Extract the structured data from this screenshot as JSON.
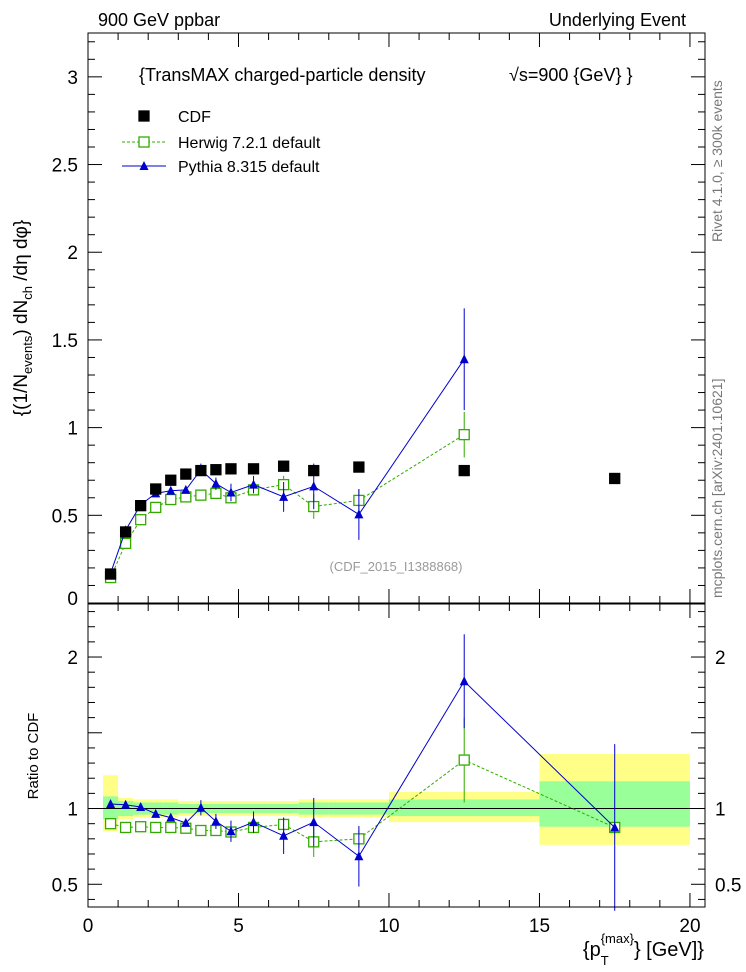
{
  "header": {
    "left": "900 GeV ppbar",
    "right": "Underlying Event"
  },
  "side_labels": {
    "rivet": "Rivet 4.1.0, ≥ 300k events",
    "mcplots": "mcplots.cern.ch [arXiv:2401.10621]"
  },
  "main_title": "{TransMAX charged-particle density",
  "sqrt_s": "√s=900 {GeV} }",
  "analysis_id": "(CDF_2015_I1388868)",
  "colors": {
    "cdf": "#000000",
    "herwig": "#33aa00",
    "pythia": "#0000cc",
    "band_inner": "#99ff99",
    "band_outer": "#ffff88",
    "analysis_id": "#9a9a9a",
    "side": "#777777"
  },
  "chart_data": [
    {
      "type": "scatter",
      "name": "main",
      "xlabel": "{p_T^{max}} [GeV]}",
      "ylabel": "{(1/N_events) dN_ch /dη dφ}",
      "xlim": [
        0,
        20.5
      ],
      "ylim": [
        0,
        3.25
      ],
      "yticks": [
        {
          "v": 0.5,
          "label": "0.5"
        },
        {
          "v": 1,
          "label": "1"
        },
        {
          "v": 1.5,
          "label": "1.5"
        },
        {
          "v": 2,
          "label": "2"
        },
        {
          "v": 2.5,
          "label": "2.5"
        },
        {
          "v": 3,
          "label": "3"
        }
      ],
      "ytick_zero": "0",
      "legend": [
        {
          "key": "cdf",
          "label": "CDF"
        },
        {
          "key": "herwig",
          "label": "Herwig 7.2.1 default"
        },
        {
          "key": "pythia",
          "label": "Pythia 8.315 default"
        }
      ],
      "series": [
        {
          "key": "cdf",
          "name": "CDF",
          "x": [
            0.75,
            1.25,
            1.75,
            2.25,
            2.75,
            3.25,
            3.75,
            4.25,
            4.75,
            5.5,
            6.5,
            7.5,
            9.0,
            12.5,
            17.5
          ],
          "y": [
            0.165,
            0.405,
            0.555,
            0.65,
            0.7,
            0.735,
            0.755,
            0.76,
            0.765,
            0.765,
            0.78,
            0.755,
            0.775,
            0.755,
            0.71
          ]
        },
        {
          "key": "herwig",
          "name": "Herwig 7.2.1 default",
          "x": [
            0.75,
            1.25,
            1.75,
            2.25,
            2.75,
            3.25,
            3.75,
            4.25,
            4.75,
            5.5,
            6.5,
            7.5,
            9.0,
            12.5
          ],
          "y": [
            0.145,
            0.34,
            0.475,
            0.545,
            0.59,
            0.605,
            0.615,
            0.625,
            0.6,
            0.645,
            0.675,
            0.55,
            0.585,
            0.96
          ],
          "err": [
            0.01,
            0.01,
            0.01,
            0.015,
            0.015,
            0.02,
            0.02,
            0.02,
            0.025,
            0.03,
            0.05,
            0.07,
            0.06,
            0.13
          ]
        },
        {
          "key": "pythia",
          "name": "Pythia 8.315 default",
          "x": [
            0.75,
            1.25,
            1.75,
            2.25,
            2.75,
            3.25,
            3.75,
            4.25,
            4.75,
            5.5,
            6.5,
            7.5,
            9.0,
            12.5
          ],
          "y": [
            0.17,
            0.415,
            0.56,
            0.625,
            0.64,
            0.645,
            0.76,
            0.68,
            0.63,
            0.675,
            0.605,
            0.665,
            0.505,
            1.39
          ],
          "err": [
            0.01,
            0.01,
            0.01,
            0.015,
            0.015,
            0.02,
            0.035,
            0.035,
            0.05,
            0.05,
            0.085,
            0.13,
            0.145,
            0.29
          ]
        }
      ]
    },
    {
      "type": "scatter",
      "name": "ratio",
      "ylabel": "Ratio to CDF",
      "xlabel": "{p_T^{max}} [GeV]}",
      "xlim": [
        0,
        20.5
      ],
      "ylim": [
        0.35,
        2.35
      ],
      "yticks": [
        {
          "v": 0.5,
          "label": "0.5"
        },
        {
          "v": 1,
          "label": "1"
        },
        {
          "v": 2,
          "label": "2"
        }
      ],
      "xticks": [
        {
          "v": 0,
          "label": "0"
        },
        {
          "v": 5,
          "label": "5"
        },
        {
          "v": 10,
          "label": "10"
        },
        {
          "v": 15,
          "label": "15"
        },
        {
          "v": 20,
          "label": "20"
        }
      ],
      "bands": [
        {
          "x0": 0.5,
          "x1": 1.0,
          "in": [
            0.93,
            1.08
          ],
          "out": [
            0.85,
            1.22
          ]
        },
        {
          "x0": 1.0,
          "x1": 1.5,
          "in": [
            0.95,
            1.05
          ],
          "out": [
            0.93,
            1.07
          ]
        },
        {
          "x0": 1.5,
          "x1": 2.0,
          "in": [
            0.96,
            1.04
          ],
          "out": [
            0.94,
            1.06
          ]
        },
        {
          "x0": 2.0,
          "x1": 2.5,
          "in": [
            0.96,
            1.04
          ],
          "out": [
            0.94,
            1.06
          ]
        },
        {
          "x0": 2.5,
          "x1": 3.0,
          "in": [
            0.96,
            1.04
          ],
          "out": [
            0.94,
            1.06
          ]
        },
        {
          "x0": 3.0,
          "x1": 3.5,
          "in": [
            0.97,
            1.03
          ],
          "out": [
            0.95,
            1.05
          ]
        },
        {
          "x0": 3.5,
          "x1": 4.0,
          "in": [
            0.97,
            1.03
          ],
          "out": [
            0.95,
            1.05
          ]
        },
        {
          "x0": 4.0,
          "x1": 4.5,
          "in": [
            0.97,
            1.03
          ],
          "out": [
            0.95,
            1.05
          ]
        },
        {
          "x0": 4.5,
          "x1": 5.0,
          "in": [
            0.97,
            1.03
          ],
          "out": [
            0.95,
            1.05
          ]
        },
        {
          "x0": 5.0,
          "x1": 6.0,
          "in": [
            0.97,
            1.03
          ],
          "out": [
            0.95,
            1.05
          ]
        },
        {
          "x0": 6.0,
          "x1": 7.0,
          "in": [
            0.97,
            1.03
          ],
          "out": [
            0.95,
            1.05
          ]
        },
        {
          "x0": 7.0,
          "x1": 8.0,
          "in": [
            0.96,
            1.04
          ],
          "out": [
            0.94,
            1.06
          ]
        },
        {
          "x0": 8.0,
          "x1": 10.0,
          "in": [
            0.96,
            1.04
          ],
          "out": [
            0.94,
            1.06
          ]
        },
        {
          "x0": 10.0,
          "x1": 15.0,
          "in": [
            0.95,
            1.06
          ],
          "out": [
            0.91,
            1.11
          ]
        },
        {
          "x0": 15.0,
          "x1": 20.0,
          "in": [
            0.88,
            1.18
          ],
          "out": [
            0.76,
            1.36
          ]
        }
      ],
      "series": [
        {
          "key": "herwig",
          "name": "Herwig 7.2.1 default",
          "x": [
            0.75,
            1.25,
            1.75,
            2.25,
            2.75,
            3.25,
            3.75,
            4.25,
            4.75,
            5.5,
            6.5,
            7.5,
            9.0,
            12.5,
            17.5
          ],
          "y": [
            0.9,
            0.875,
            0.88,
            0.875,
            0.875,
            0.87,
            0.855,
            0.855,
            0.845,
            0.875,
            0.895,
            0.78,
            0.8,
            1.32,
            0.875
          ],
          "err": [
            0.01,
            0.01,
            0.01,
            0.01,
            0.01,
            0.015,
            0.015,
            0.02,
            0.03,
            0.035,
            0.045,
            0.1,
            0.06,
            0.28,
            0
          ]
        },
        {
          "key": "pythia",
          "name": "Pythia 8.315 default",
          "x": [
            0.75,
            1.25,
            1.75,
            2.25,
            2.75,
            3.25,
            3.75,
            4.25,
            4.75,
            5.5,
            6.5,
            7.5,
            9.0,
            12.5,
            17.5
          ],
          "y": [
            1.03,
            1.025,
            1.01,
            0.965,
            0.94,
            0.905,
            1.005,
            0.915,
            0.85,
            0.91,
            0.82,
            0.91,
            0.685,
            1.84,
            0.875
          ],
          "err": [
            0.01,
            0.01,
            0.01,
            0.015,
            0.015,
            0.02,
            0.05,
            0.05,
            0.07,
            0.07,
            0.12,
            0.16,
            0.2,
            0.31,
            0.55
          ]
        }
      ]
    }
  ]
}
